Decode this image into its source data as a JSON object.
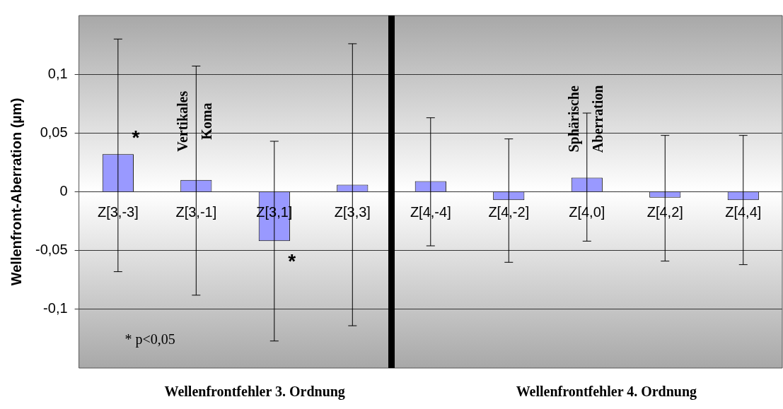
{
  "chart_data": {
    "type": "bar",
    "ylabel": "Wellenfront-Aberration (µm)",
    "categories": [
      "Z[3,-3]",
      "Z[3,-1]",
      "Z[3,1]",
      "Z[3,3]",
      "Z[4,-4]",
      "Z[4,-2]",
      "Z[4,0]",
      "Z[4,2]",
      "Z[4,4]"
    ],
    "values": [
      0.032,
      0.01,
      -0.042,
      0.006,
      0.009,
      -0.007,
      0.012,
      -0.005,
      -0.007
    ],
    "errors": [
      [
        -0.068,
        0.13
      ],
      [
        -0.088,
        0.107
      ],
      [
        -0.127,
        0.043
      ],
      [
        -0.114,
        0.126
      ],
      [
        -0.046,
        0.063
      ],
      [
        -0.06,
        0.045
      ],
      [
        -0.042,
        0.067
      ],
      [
        -0.059,
        0.048
      ],
      [
        -0.062,
        0.048
      ]
    ],
    "color": "#9999ff",
    "ylim": [
      -0.15,
      0.15
    ],
    "yticks": [
      {
        "value": -0.1,
        "label": "-0,1"
      },
      {
        "value": -0.05,
        "label": "-0,05"
      },
      {
        "value": 0,
        "label": "0"
      },
      {
        "value": 0.05,
        "label": "0,05"
      },
      {
        "value": 0.1,
        "label": "0,1"
      }
    ],
    "grid": "y",
    "legend": false,
    "annotations": [
      {
        "text": "*",
        "x": "Z[3,-3]",
        "y": 0.045
      },
      {
        "text": "*",
        "x": "Z[3,1]",
        "y": -0.06
      },
      {
        "text": "Vertikales\nKoma",
        "x": "Z[3,-1]",
        "y": 0.06
      },
      {
        "text": "Sphärische\nAberration",
        "x": "Z[4,0]",
        "y": 0.062
      },
      "* p<0,05",
      "Wellenfrontfehler 3. Ordnung",
      "Wellenfrontfehler 4. Ordnung"
    ]
  }
}
